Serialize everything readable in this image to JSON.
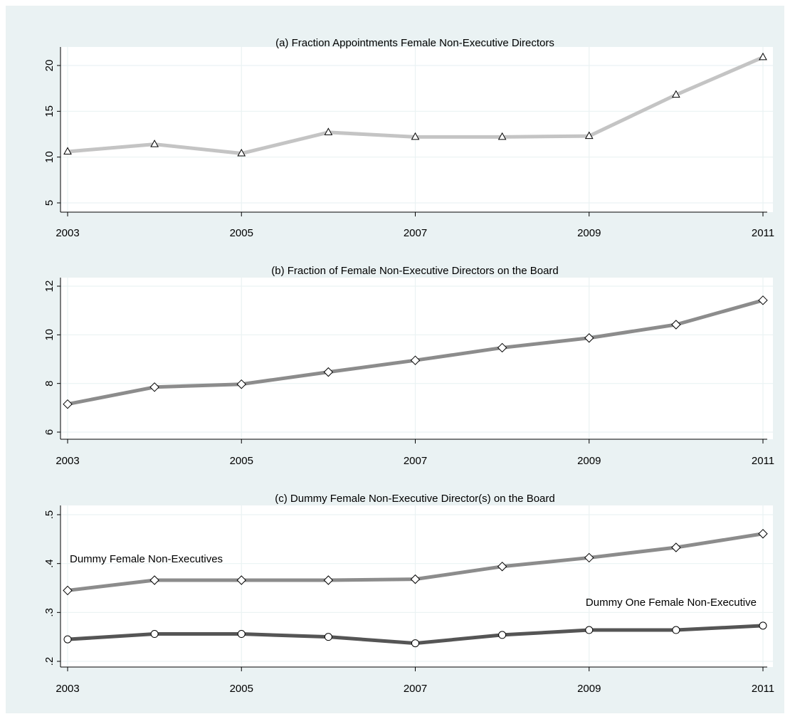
{
  "chart_data": [
    {
      "type": "line",
      "title": "(a) Fraction Appointments Female Non-Executive Directors",
      "x": [
        2003,
        2004,
        2005,
        2006,
        2007,
        2008,
        2009,
        2010,
        2011
      ],
      "xticks": [
        "2003",
        "2005",
        "2007",
        "2009",
        "2011"
      ],
      "yticks": [
        "5",
        "10",
        "15",
        "20"
      ],
      "ylim": [
        5,
        21
      ],
      "grid": true,
      "series": [
        {
          "values": [
            10.6,
            11.4,
            10.4,
            12.7,
            12.2,
            12.2,
            12.3,
            16.8,
            20.9
          ],
          "color": "#c4c4c4",
          "marker": "triangle"
        }
      ]
    },
    {
      "type": "line",
      "title": "(b) Fraction of Female Non-Executive Directors on the Board",
      "x": [
        2003,
        2004,
        2005,
        2006,
        2007,
        2008,
        2009,
        2010,
        2011
      ],
      "xticks": [
        "2003",
        "2005",
        "2007",
        "2009",
        "2011"
      ],
      "yticks": [
        "6",
        "8",
        "10",
        "12"
      ],
      "ylim": [
        6,
        12
      ],
      "grid": true,
      "series": [
        {
          "values": [
            7.15,
            7.85,
            7.97,
            8.47,
            8.95,
            9.47,
            9.87,
            10.42,
            11.42
          ],
          "color": "#8c8c8c",
          "marker": "diamond"
        }
      ]
    },
    {
      "type": "line",
      "title": "(c) Dummy Female Non-Executive Director(s) on the Board",
      "x": [
        2003,
        2004,
        2005,
        2006,
        2007,
        2008,
        2009,
        2010,
        2011
      ],
      "xticks": [
        "2003",
        "2005",
        "2007",
        "2009",
        "2011"
      ],
      "yticks": [
        ".2",
        ".3",
        ".4",
        ".5"
      ],
      "ylim": [
        0.2,
        0.5
      ],
      "grid": true,
      "series": [
        {
          "name": "Dummy Female Non-Executives",
          "values": [
            0.345,
            0.366,
            0.366,
            0.366,
            0.368,
            0.394,
            0.412,
            0.433,
            0.461
          ],
          "color": "#8c8c8c",
          "marker": "diamond"
        },
        {
          "name": "Dummy One Female Non-Executive",
          "values": [
            0.245,
            0.256,
            0.256,
            0.25,
            0.237,
            0.254,
            0.264,
            0.264,
            0.273
          ],
          "color": "#555555",
          "marker": "circle"
        }
      ]
    }
  ]
}
